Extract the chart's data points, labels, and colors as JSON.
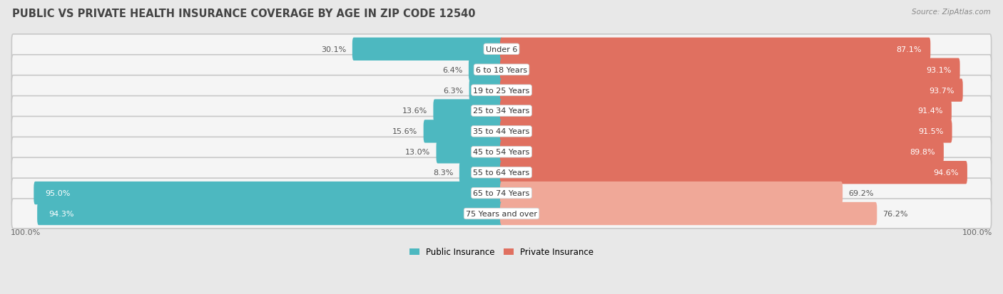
{
  "title": "PUBLIC VS PRIVATE HEALTH INSURANCE COVERAGE BY AGE IN ZIP CODE 12540",
  "source": "Source: ZipAtlas.com",
  "categories": [
    "Under 6",
    "6 to 18 Years",
    "19 to 25 Years",
    "25 to 34 Years",
    "35 to 44 Years",
    "45 to 54 Years",
    "55 to 64 Years",
    "65 to 74 Years",
    "75 Years and over"
  ],
  "public_values": [
    30.1,
    6.4,
    6.3,
    13.6,
    15.6,
    13.0,
    8.3,
    95.0,
    94.3
  ],
  "private_values": [
    87.1,
    93.1,
    93.7,
    91.4,
    91.5,
    89.8,
    94.6,
    69.2,
    76.2
  ],
  "public_color_high": "#4DB8C0",
  "public_color_low": "#4DB8C0",
  "private_color_high": "#E07060",
  "private_color_low": "#F0A898",
  "row_bg_color": "#DCDCDC",
  "row_inner_color": "#F5F5F5",
  "page_bg_color": "#E8E8E8",
  "title_color": "#444444",
  "label_color": "#333333",
  "value_color_inside": "white",
  "value_color_outside": "#555555",
  "title_fontsize": 10.5,
  "label_fontsize": 8,
  "value_fontsize": 8,
  "axis_label_fontsize": 8,
  "axis_max": 100.0,
  "private_high_threshold": 80,
  "public_high_threshold": 50
}
